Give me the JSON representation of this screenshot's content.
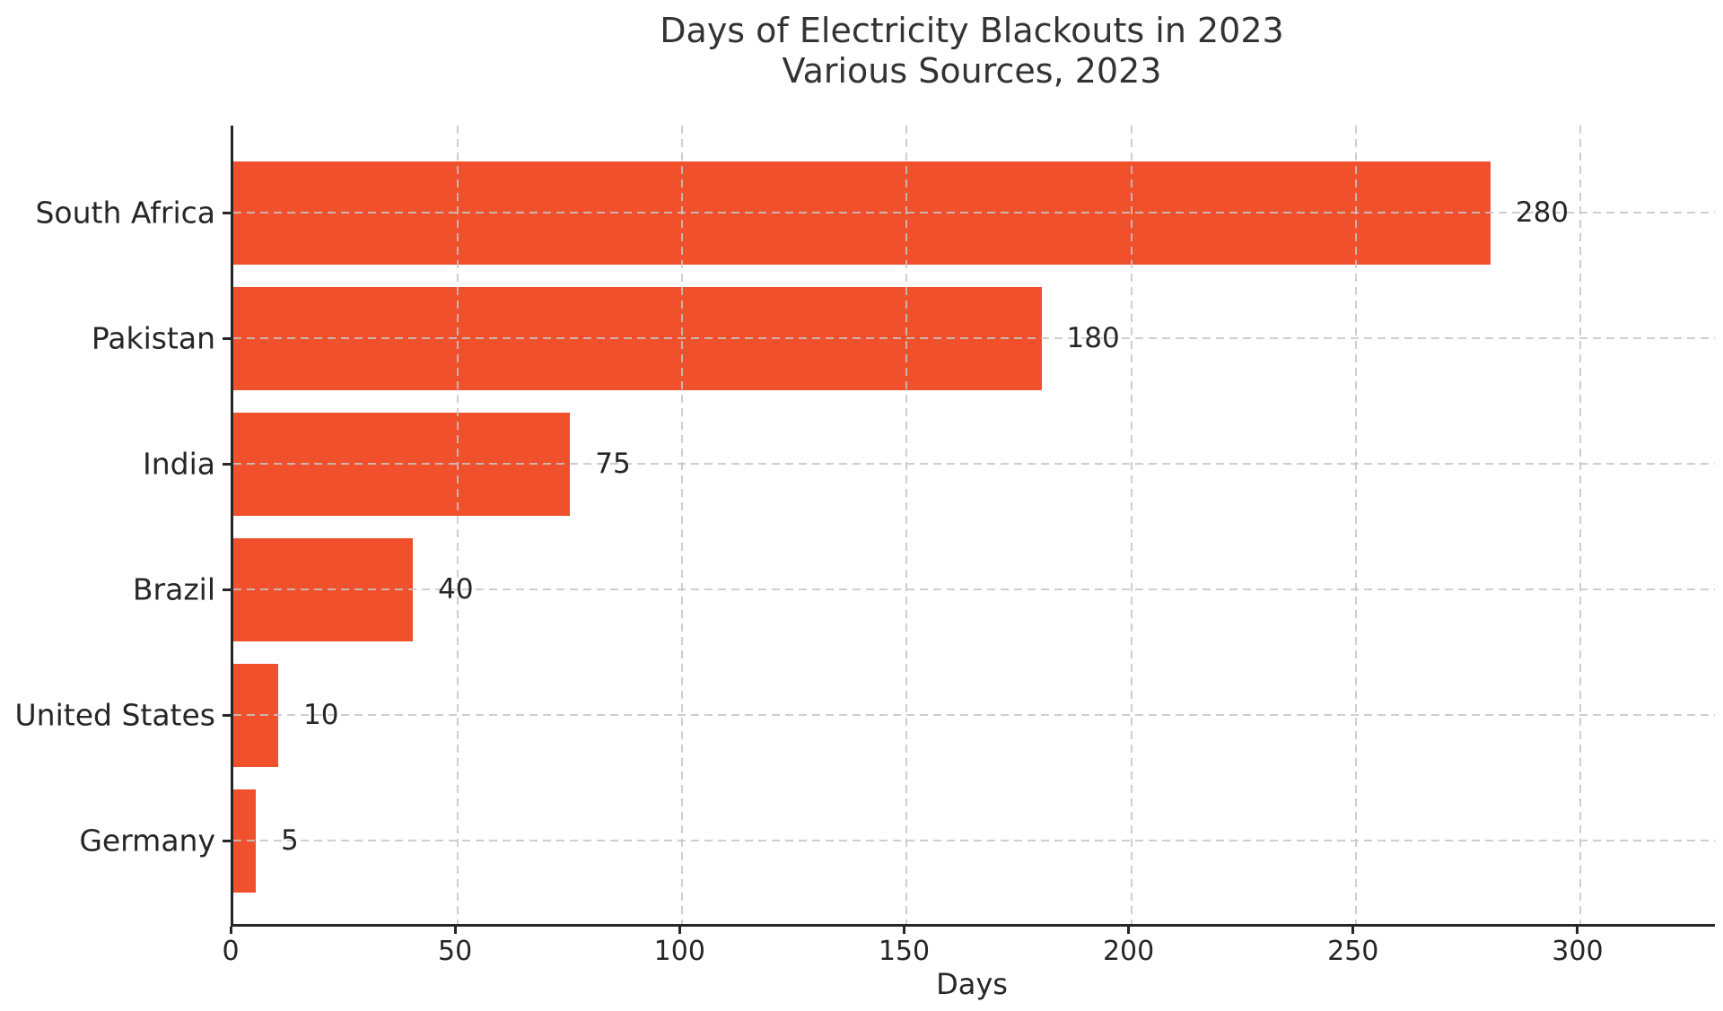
{
  "chart_data": {
    "type": "bar",
    "orientation": "horizontal",
    "title": "Days of Electricity Blackouts in 2023",
    "subtitle": "Various Sources, 2023",
    "categories": [
      "South Africa",
      "Pakistan",
      "India",
      "Brazil",
      "United States",
      "Germany"
    ],
    "values": [
      280,
      180,
      75,
      40,
      10,
      5
    ],
    "value_labels": [
      "280",
      "180",
      "75",
      "40",
      "10",
      "5"
    ],
    "xlabel": "Days",
    "x_ticks": [
      0,
      50,
      100,
      150,
      200,
      250,
      300
    ],
    "xlim": [
      0,
      330
    ],
    "grid": "dashed gridlines on both axes, drawn over bars",
    "legend_position": "none",
    "colors": {
      "bar": "#F0502C",
      "grid": "#c6c6c6",
      "text": "#262626",
      "title_text": "#333333",
      "spine": "#262626",
      "background": "#ffffff"
    }
  }
}
